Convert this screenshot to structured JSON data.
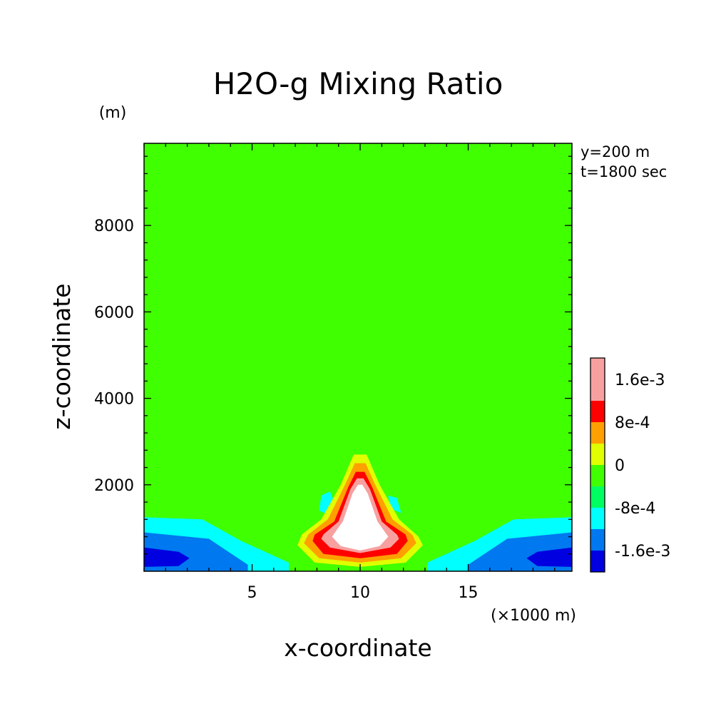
{
  "chart_data": {
    "type": "contour",
    "title": "H2O-g Mixing Ratio",
    "xlabel": "x-coordinate",
    "ylabel": "z-coordinate",
    "x_unit": "(×1000 m)",
    "y_unit": "(m)",
    "annotation_lines": [
      "y=200 m",
      "t=1800 sec"
    ],
    "xlim": [
      0,
      19.8
    ],
    "ylim": [
      0,
      9900
    ],
    "x_ticks": [
      5,
      10,
      15
    ],
    "y_ticks": [
      2000,
      4000,
      6000,
      8000
    ],
    "x_minor_step": 1,
    "y_minor_step": 400,
    "levels": [
      -0.002,
      -0.0016,
      -0.0012,
      -0.0008,
      -0.0004,
      0,
      0.0004,
      0.0008,
      0.0012,
      0.0016,
      0.002
    ],
    "level_colors": [
      "#8000b0",
      "#0000e0",
      "#0078f0",
      "#00ffff",
      "#00ff60",
      "#40ff00",
      "#e0ff00",
      "#ffa000",
      "#ff0000",
      "#f8a0a0",
      "#ffffff"
    ],
    "colorbar_labels": [
      {
        "value": 0.0016,
        "text": "1.6e-3"
      },
      {
        "value": 0.0008,
        "text": "8e-4"
      },
      {
        "value": 0,
        "text": "0"
      },
      {
        "value": -0.0008,
        "text": "-8e-4"
      },
      {
        "value": -0.0016,
        "text": "-1.6e-3"
      }
    ],
    "regions": [
      {
        "name": "anomaly-slightly-positive",
        "level": 5,
        "points": [
          [
            0,
            9900
          ],
          [
            5,
            9900
          ],
          [
            5.2,
            6400
          ],
          [
            6,
            6100
          ],
          [
            13.8,
            6100
          ],
          [
            14.6,
            6400
          ],
          [
            14.8,
            9900
          ],
          [
            19.8,
            9900
          ],
          [
            19.8,
            6000
          ],
          [
            16.5,
            5800
          ],
          [
            15.2,
            5200
          ],
          [
            14.6,
            4000
          ],
          [
            13.8,
            3500
          ],
          [
            11,
            3200
          ],
          [
            10,
            2900
          ],
          [
            9,
            3200
          ],
          [
            6.2,
            3500
          ],
          [
            5.2,
            4000
          ],
          [
            4.6,
            5200
          ],
          [
            3.3,
            5800
          ],
          [
            0,
            6000
          ]
        ]
      },
      {
        "name": "anomaly-slightly-positive-left-lobe",
        "level": 5,
        "points": [
          [
            0,
            3100
          ],
          [
            1.6,
            3150
          ],
          [
            3.6,
            2800
          ],
          [
            4.5,
            2200
          ],
          [
            3.8,
            1850
          ],
          [
            2.4,
            1750
          ],
          [
            0,
            1700
          ]
        ]
      },
      {
        "name": "anomaly-slightly-positive-right-lobe",
        "level": 5,
        "points": [
          [
            19.8,
            3100
          ],
          [
            18.2,
            3150
          ],
          [
            16.2,
            2800
          ],
          [
            15.3,
            2200
          ],
          [
            16,
            1850
          ],
          [
            17.4,
            1750
          ],
          [
            19.8,
            1700
          ]
        ]
      },
      {
        "name": "anomaly-negative-base-left",
        "level": 3,
        "points": [
          [
            0,
            1250
          ],
          [
            2.7,
            1200
          ],
          [
            4.5,
            700
          ],
          [
            6.7,
            200
          ],
          [
            6.7,
            0
          ],
          [
            0,
            0
          ]
        ]
      },
      {
        "name": "anomaly-negative-base-right",
        "level": 3,
        "points": [
          [
            19.8,
            1250
          ],
          [
            17.1,
            1200
          ],
          [
            15.3,
            700
          ],
          [
            13.1,
            200
          ],
          [
            13.1,
            0
          ],
          [
            19.8,
            0
          ]
        ]
      },
      {
        "name": "anomaly-negative-moderate-left",
        "level": 2,
        "points": [
          [
            0,
            900
          ],
          [
            3,
            750
          ],
          [
            4.8,
            150
          ],
          [
            4.8,
            0
          ],
          [
            0,
            0
          ]
        ]
      },
      {
        "name": "anomaly-negative-moderate-right",
        "level": 2,
        "points": [
          [
            19.8,
            900
          ],
          [
            16.8,
            750
          ],
          [
            15,
            150
          ],
          [
            15,
            0
          ],
          [
            19.8,
            0
          ]
        ]
      },
      {
        "name": "anomaly-negative-strong-left",
        "level": 1,
        "points": [
          [
            0,
            550
          ],
          [
            1.6,
            450
          ],
          [
            2.1,
            300
          ],
          [
            1.6,
            120
          ],
          [
            0,
            100
          ]
        ]
      },
      {
        "name": "anomaly-negative-strong-right",
        "level": 1,
        "points": [
          [
            19.8,
            550
          ],
          [
            18.2,
            450
          ],
          [
            17.7,
            300
          ],
          [
            18.2,
            120
          ],
          [
            19.8,
            100
          ]
        ]
      },
      {
        "name": "anomaly-negative-small-left",
        "level": 3,
        "points": [
          [
            8.2,
            1750
          ],
          [
            8.6,
            1850
          ],
          [
            8.8,
            1600
          ],
          [
            8.6,
            1300
          ],
          [
            8.1,
            1400
          ]
        ]
      },
      {
        "name": "anomaly-negative-small-right",
        "level": 3,
        "points": [
          [
            11.3,
            1750
          ],
          [
            11.7,
            1700
          ],
          [
            11.9,
            1350
          ],
          [
            11.4,
            1450
          ]
        ]
      },
      {
        "name": "anomaly-positive-1",
        "level": 6,
        "points": [
          [
            9.7,
            2700
          ],
          [
            10.3,
            2700
          ],
          [
            10.9,
            2000
          ],
          [
            11.8,
            1200
          ],
          [
            12.7,
            800
          ],
          [
            12.9,
            600
          ],
          [
            12.1,
            200
          ],
          [
            10,
            100
          ],
          [
            7.9,
            200
          ],
          [
            7.1,
            600
          ],
          [
            7.3,
            850
          ],
          [
            8.2,
            1200
          ],
          [
            9.1,
            2000
          ]
        ]
      },
      {
        "name": "anomaly-positive-2",
        "level": 7,
        "points": [
          [
            9.75,
            2500
          ],
          [
            10.25,
            2500
          ],
          [
            10.7,
            2000
          ],
          [
            11.5,
            1200
          ],
          [
            12.4,
            850
          ],
          [
            12.6,
            650
          ],
          [
            11.9,
            300
          ],
          [
            10,
            200
          ],
          [
            8.1,
            300
          ],
          [
            7.4,
            650
          ],
          [
            7.6,
            850
          ],
          [
            8.5,
            1200
          ],
          [
            9.3,
            2000
          ]
        ]
      },
      {
        "name": "anomaly-positive-3",
        "level": 8,
        "points": [
          [
            9.8,
            2300
          ],
          [
            10.2,
            2300
          ],
          [
            10.55,
            1950
          ],
          [
            11.2,
            1150
          ],
          [
            12.1,
            850
          ],
          [
            12.2,
            700
          ],
          [
            11.7,
            400
          ],
          [
            10,
            300
          ],
          [
            8.3,
            400
          ],
          [
            7.8,
            700
          ],
          [
            7.9,
            850
          ],
          [
            8.8,
            1150
          ],
          [
            9.45,
            1950
          ]
        ]
      },
      {
        "name": "anomaly-positive-4",
        "level": 9,
        "points": [
          [
            9.85,
            2150
          ],
          [
            10.15,
            2150
          ],
          [
            10.45,
            1900
          ],
          [
            11,
            1150
          ],
          [
            11.7,
            850
          ],
          [
            11.8,
            750
          ],
          [
            11.4,
            550
          ],
          [
            10,
            420
          ],
          [
            8.6,
            550
          ],
          [
            8.2,
            750
          ],
          [
            8.3,
            850
          ],
          [
            9,
            1150
          ],
          [
            9.55,
            1900
          ]
        ]
      },
      {
        "name": "anomaly-peak",
        "level": 10,
        "points": [
          [
            9.9,
            2000
          ],
          [
            10.1,
            2000
          ],
          [
            10.35,
            1800
          ],
          [
            10.8,
            1150
          ],
          [
            11.3,
            800
          ],
          [
            10.9,
            580
          ],
          [
            10,
            480
          ],
          [
            9.1,
            580
          ],
          [
            8.7,
            800
          ],
          [
            9.2,
            1150
          ],
          [
            9.65,
            1800
          ]
        ]
      }
    ]
  }
}
